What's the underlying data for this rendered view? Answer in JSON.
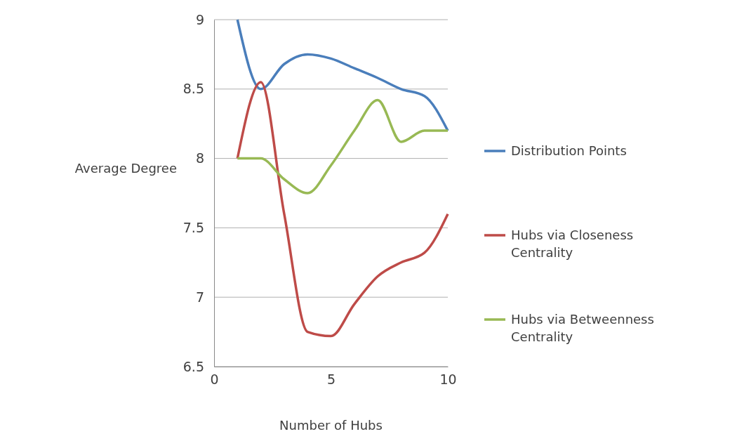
{
  "chart_data": {
    "type": "line",
    "xlabel": "Number of Hubs",
    "ylabel": "Average Degree",
    "x": [
      1,
      2,
      3,
      4,
      5,
      6,
      7,
      8,
      9,
      10
    ],
    "xlim": [
      0,
      10
    ],
    "xticks": [
      0,
      5,
      10
    ],
    "ylim": [
      6.5,
      9
    ],
    "yticks": [
      6.5,
      7,
      7.5,
      8,
      8.5,
      9
    ],
    "grid": "y",
    "legend": "right",
    "marker": "none",
    "line_style": "solid",
    "series": [
      {
        "name": "Distribution Points",
        "color": "#4a7ebb",
        "values": [
          9,
          8.5,
          8.68,
          8.75,
          8.72,
          8.65,
          8.58,
          8.5,
          8.45,
          8.2
        ]
      },
      {
        "name": "Hubs via Closeness Centrality",
        "color": "#be4b48",
        "values": [
          8,
          8.55,
          7.6,
          6.75,
          6.72,
          6.95,
          7.15,
          7.25,
          7.32,
          7.6
        ]
      },
      {
        "name": "Hubs via Betweenness Centrality",
        "color": "#98b954",
        "values": [
          8,
          8,
          7.85,
          7.75,
          7.95,
          8.2,
          8.42,
          8.12,
          8.2,
          8.2
        ]
      }
    ]
  }
}
